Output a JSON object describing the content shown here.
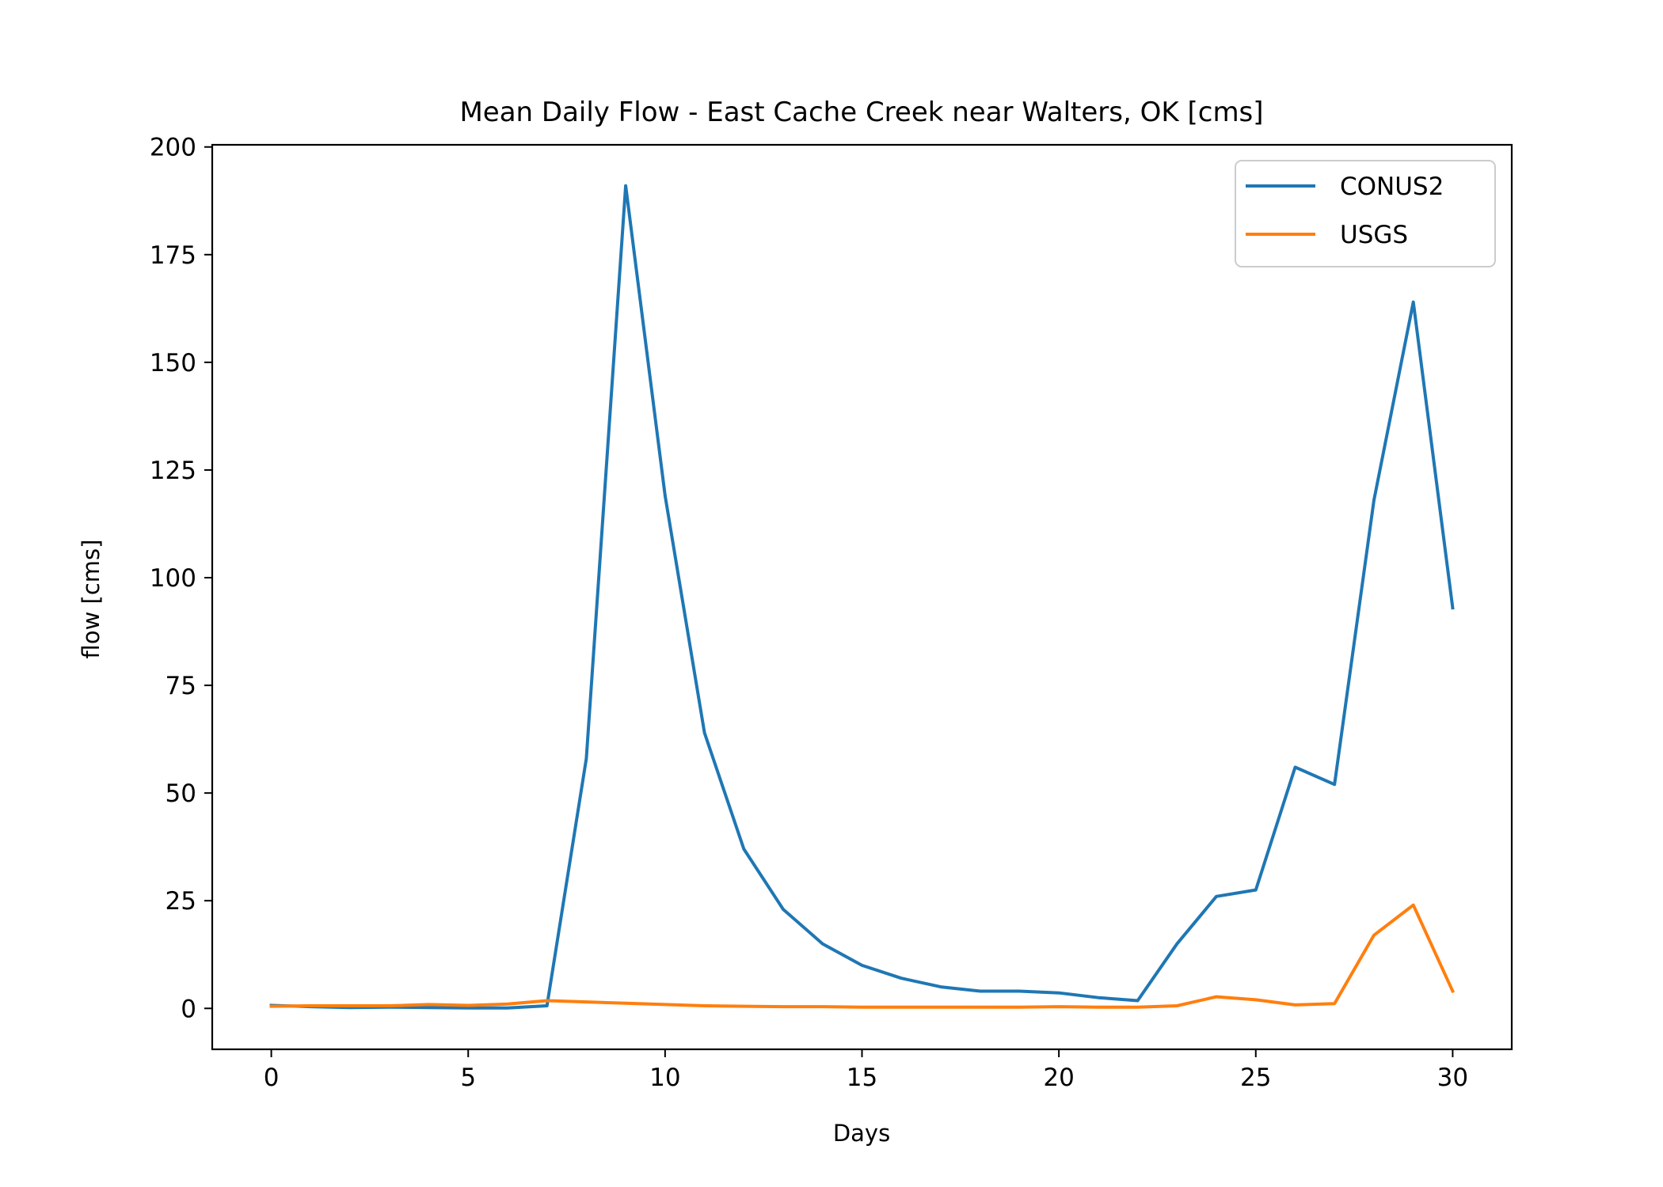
{
  "chart_data": {
    "type": "line",
    "title": "Mean Daily Flow - East Cache Creek near Walters, OK [cms]",
    "xlabel": "Days",
    "ylabel": "flow [cms]",
    "xlim": [
      -1.5,
      31.5
    ],
    "ylim": [
      -9.5,
      200.5
    ],
    "xticks": [
      0,
      5,
      10,
      15,
      20,
      25,
      30
    ],
    "xtick_labels": [
      "0",
      "5",
      "10",
      "15",
      "20",
      "25",
      "30"
    ],
    "yticks": [
      0,
      25,
      50,
      75,
      100,
      125,
      150,
      175,
      200
    ],
    "ytick_labels": [
      "0",
      "25",
      "50",
      "75",
      "100",
      "125",
      "150",
      "175",
      "200"
    ],
    "grid": false,
    "legend_position": "top-right",
    "x": [
      0,
      1,
      2,
      3,
      4,
      5,
      6,
      7,
      8,
      9,
      10,
      11,
      12,
      13,
      14,
      15,
      16,
      17,
      18,
      19,
      20,
      21,
      22,
      23,
      24,
      25,
      26,
      27,
      28,
      29,
      30
    ],
    "series": [
      {
        "name": "CONUS2",
        "color": "#1f77b4",
        "values": [
          0.7,
          0.4,
          0.2,
          0.3,
          0.2,
          0.1,
          0.1,
          0.6,
          58,
          191,
          119,
          64,
          37,
          23,
          15,
          10,
          7,
          5,
          4,
          4,
          3.6,
          2.5,
          1.8,
          15,
          26,
          27.5,
          56,
          52,
          118,
          164,
          93
        ]
      },
      {
        "name": "USGS",
        "color": "#ff7f0e",
        "values": [
          0.5,
          0.6,
          0.6,
          0.6,
          0.9,
          0.7,
          1,
          1.8,
          1.5,
          1.2,
          0.9,
          0.6,
          0.5,
          0.4,
          0.4,
          0.3,
          0.3,
          0.3,
          0.3,
          0.3,
          0.4,
          0.3,
          0.3,
          0.6,
          2.7,
          2,
          0.8,
          1.1,
          17,
          24,
          4
        ]
      }
    ]
  }
}
